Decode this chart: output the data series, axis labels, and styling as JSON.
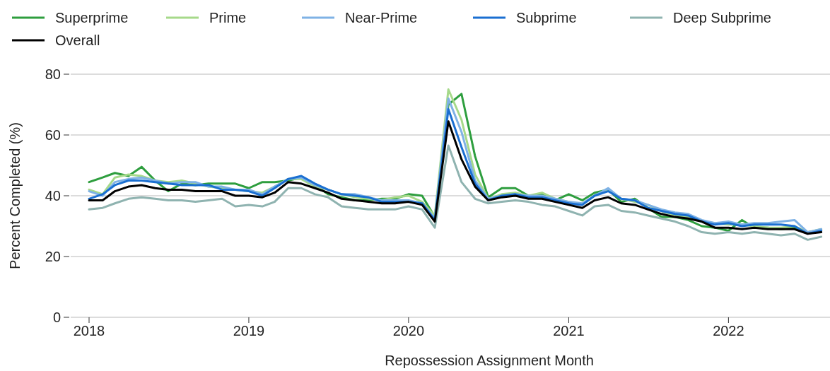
{
  "chart_data": {
    "type": "line",
    "xlabel": "Repossession Assignment Month",
    "ylabel": "Percent Completed (%)",
    "x": [
      "2018-01",
      "2018-02",
      "2018-03",
      "2018-04",
      "2018-05",
      "2018-06",
      "2018-07",
      "2018-08",
      "2018-09",
      "2018-10",
      "2018-11",
      "2018-12",
      "2019-01",
      "2019-02",
      "2019-03",
      "2019-04",
      "2019-05",
      "2019-06",
      "2019-07",
      "2019-08",
      "2019-09",
      "2019-10",
      "2019-11",
      "2019-12",
      "2020-01",
      "2020-02",
      "2020-03",
      "2020-04",
      "2020-05",
      "2020-06",
      "2020-07",
      "2020-08",
      "2020-09",
      "2020-10",
      "2020-11",
      "2020-12",
      "2021-01",
      "2021-02",
      "2021-03",
      "2021-04",
      "2021-05",
      "2021-06",
      "2021-07",
      "2021-08",
      "2021-09",
      "2021-10",
      "2021-11",
      "2021-12",
      "2022-01",
      "2022-02",
      "2022-03",
      "2022-04",
      "2022-05",
      "2022-06",
      "2022-07",
      "2022-08"
    ],
    "series": [
      {
        "name": "Superprime",
        "color": "#2e9e3e",
        "values": [
          44.5,
          46,
          47.5,
          46.5,
          49.5,
          45,
          41.5,
          44,
          43.5,
          44,
          44,
          44,
          42.5,
          44.5,
          44.5,
          45,
          46,
          43.5,
          40.5,
          39.5,
          38.5,
          38.5,
          39,
          39,
          40.5,
          40,
          33,
          70,
          73.5,
          53,
          39.5,
          42.5,
          42.5,
          40,
          40.5,
          38.5,
          40.5,
          38.5,
          41,
          42,
          38,
          39,
          36,
          33,
          33,
          32,
          30,
          29.5,
          28.5,
          32,
          29.5,
          29.5,
          29,
          29.5,
          28,
          28.5
        ]
      },
      {
        "name": "Prime",
        "color": "#a6d98a",
        "values": [
          42,
          40.5,
          46,
          47,
          46.5,
          45,
          44.5,
          45,
          44,
          43,
          42.5,
          42,
          41.5,
          41,
          43,
          45.5,
          45.5,
          43,
          42,
          40.5,
          39.5,
          39,
          38.5,
          39.5,
          40,
          38,
          33.5,
          75,
          65,
          47,
          39,
          40.5,
          41,
          40,
          41,
          39,
          38,
          37,
          40,
          42,
          39,
          38,
          37,
          35,
          33.5,
          33,
          31.5,
          31,
          30.5,
          30.5,
          30,
          29.5,
          29.5,
          30,
          28,
          29
        ]
      },
      {
        "name": "Near-Prime",
        "color": "#7fb2e5",
        "values": [
          41.5,
          40,
          44.5,
          45.5,
          46,
          45,
          44,
          44.5,
          44.5,
          43,
          43,
          42,
          42,
          40.5,
          43,
          45.5,
          46,
          43.5,
          42,
          40.5,
          40.5,
          39.5,
          38.5,
          38.5,
          38.5,
          37.5,
          32.5,
          72,
          61,
          45,
          39,
          40,
          40.5,
          40,
          40,
          39,
          38,
          37.5,
          40,
          42.5,
          39,
          38.5,
          37,
          35.5,
          34.5,
          34,
          32,
          31,
          31.5,
          30.5,
          31,
          31,
          31.5,
          32,
          28,
          29
        ]
      },
      {
        "name": "Subprime",
        "color": "#1a6fd1",
        "values": [
          39,
          40.5,
          43.5,
          45,
          45,
          44.5,
          44,
          43.5,
          43.5,
          43.5,
          42,
          42,
          41.5,
          40,
          42.5,
          45.5,
          46.5,
          44,
          42,
          40.5,
          40,
          39.5,
          38,
          38,
          38,
          37.5,
          32,
          68.5,
          56,
          44,
          38.5,
          40,
          40.5,
          39.5,
          39.5,
          38.5,
          37.5,
          37,
          40,
          41.5,
          39,
          38.5,
          36,
          35,
          34,
          33.5,
          31.5,
          30.5,
          31,
          30,
          30.5,
          30.5,
          30.5,
          30,
          27.5,
          28.5
        ]
      },
      {
        "name": "Deep Subprime",
        "color": "#8fb3b0",
        "values": [
          35.5,
          36,
          37.5,
          39,
          39.5,
          39,
          38.5,
          38.5,
          38,
          38.5,
          39,
          36.5,
          37,
          36.5,
          38,
          42.5,
          42.5,
          40.5,
          39.5,
          36.5,
          36,
          35.5,
          35.5,
          35.5,
          36.5,
          35.5,
          29.5,
          56.5,
          44.5,
          39,
          37.5,
          38,
          38.5,
          38,
          37,
          36.5,
          35,
          33.5,
          36.5,
          37,
          35,
          34.5,
          33.5,
          32.5,
          31.5,
          30,
          28,
          27.5,
          28,
          27.5,
          28,
          27.5,
          27,
          27.5,
          25.5,
          26.5
        ]
      },
      {
        "name": "Overall",
        "color": "#000000",
        "values": [
          38.5,
          38.5,
          41.5,
          43,
          43.5,
          42.5,
          42,
          42,
          41.5,
          41.5,
          41.5,
          40,
          40,
          39.5,
          41,
          44.5,
          44,
          42.5,
          41,
          39,
          38.5,
          38,
          37.5,
          37.5,
          38,
          37,
          31.5,
          64.5,
          52,
          43,
          38.5,
          39.5,
          40,
          39,
          39,
          38,
          37,
          36,
          38.5,
          39.5,
          37.5,
          37,
          35.5,
          34,
          33,
          32.5,
          31.5,
          29.5,
          29.5,
          29,
          29.5,
          29,
          29,
          29,
          27.5,
          28
        ]
      }
    ],
    "xlim": [
      "2017-11-20",
      "2022-08-21"
    ],
    "xticks": [
      {
        "value": "2018-01",
        "label": "2018"
      },
      {
        "value": "2019-01",
        "label": "2019"
      },
      {
        "value": "2020-01",
        "label": "2020"
      },
      {
        "value": "2021-01",
        "label": "2021"
      },
      {
        "value": "2022-01",
        "label": "2022"
      }
    ],
    "ylim": [
      0,
      80
    ],
    "yticks": [
      0,
      20,
      40,
      60,
      80
    ],
    "grid": "y",
    "legend": "top",
    "line_style": "solid",
    "marker": "none"
  }
}
